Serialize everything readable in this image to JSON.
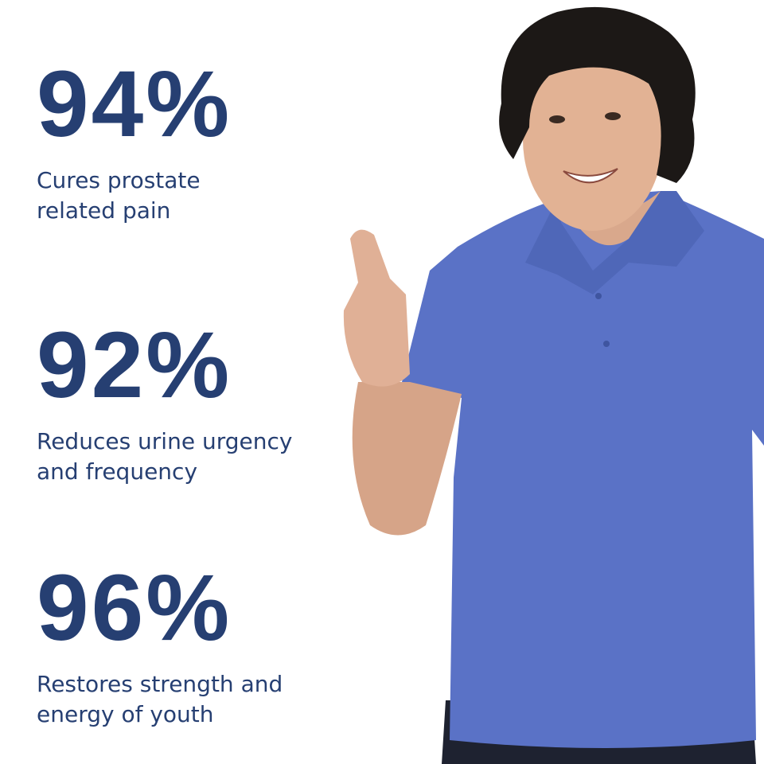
{
  "stats": [
    {
      "value": "94%",
      "line1": "Cures prostate",
      "line2": "related pain"
    },
    {
      "value": "92%",
      "line1": "Reduces urine urgency",
      "line2": "and frequency"
    },
    {
      "value": "96%",
      "line1": "Restores strength and",
      "line2": "energy of youth"
    }
  ],
  "colors": {
    "text": "#263f72",
    "shirt": "#5a72c6",
    "background": "#ffffff"
  }
}
